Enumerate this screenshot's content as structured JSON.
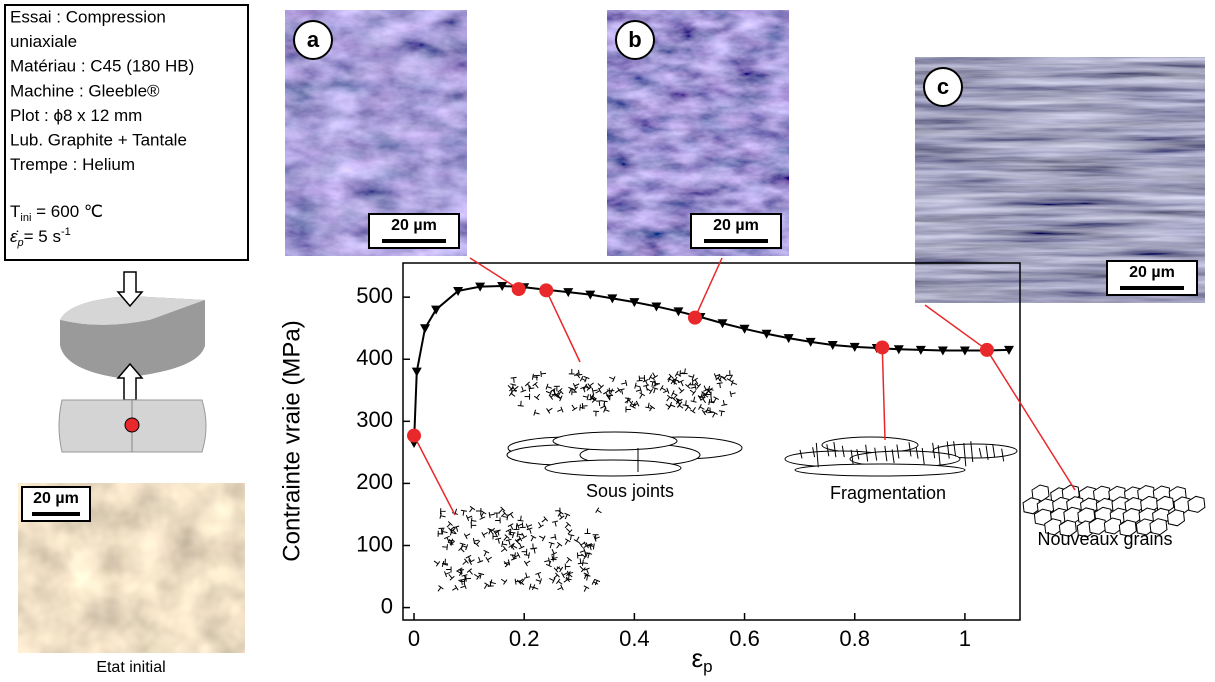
{
  "info": {
    "lines": [
      "Essai : Compression",
      "uniaxiale",
      "Matériau : C45 (180 HB)",
      "Machine : Gleeble®",
      "Plot : ϕ8 x 12 mm",
      "Lub. Graphite + Tantale",
      "Trempe : Helium"
    ],
    "temperature": {
      "symbol": "T",
      "sub": "ini",
      "text": " = 600 ℃"
    },
    "rate": {
      "symbol": "ε̇",
      "sub": "p",
      "text": "= 5 s",
      "sup": "-1"
    }
  },
  "initial": {
    "scale": "20 µm",
    "caption": "Etat initial"
  },
  "micrographs": [
    {
      "label": "a",
      "scale": "20 µm"
    },
    {
      "label": "b",
      "scale": "20 µm"
    },
    {
      "label": "c",
      "scale": "20 µm"
    }
  ],
  "annotations": [
    "Sous joints",
    "Fragmentation",
    "Nouveaux grains"
  ],
  "chart_data": {
    "type": "line",
    "ylabel": "Contrainte vraie (MPa)",
    "xlabel": "ε",
    "xlabel_sub": "p",
    "xlim": [
      -0.02,
      1.1
    ],
    "ylim": [
      -20,
      555
    ],
    "xticks": [
      0,
      0.2,
      0.4,
      0.6,
      0.8,
      1
    ],
    "yticks": [
      0,
      100,
      200,
      300,
      400,
      500
    ],
    "series": [
      {
        "color": "#000000",
        "marker": "triangle-down",
        "x": [
          0,
          0.005,
          0.02,
          0.04,
          0.08,
          0.12,
          0.16,
          0.2,
          0.24,
          0.28,
          0.32,
          0.36,
          0.4,
          0.44,
          0.48,
          0.52,
          0.56,
          0.6,
          0.64,
          0.68,
          0.72,
          0.76,
          0.8,
          0.84,
          0.88,
          0.92,
          0.96,
          1.0,
          1.04,
          1.08
        ],
        "values": [
          265,
          380,
          450,
          480,
          510,
          517,
          518,
          516,
          512,
          508,
          504,
          498,
          492,
          485,
          477,
          468,
          458,
          449,
          441,
          434,
          428,
          423,
          420,
          418,
          416,
          415,
          414,
          414,
          414,
          415
        ]
      },
      {
        "color": "#e8282b",
        "marker": "circle",
        "x": [
          0,
          0.19,
          0.24,
          0.51,
          0.85,
          1.04
        ],
        "values": [
          277,
          513,
          511,
          467,
          419,
          415
        ]
      }
    ]
  }
}
